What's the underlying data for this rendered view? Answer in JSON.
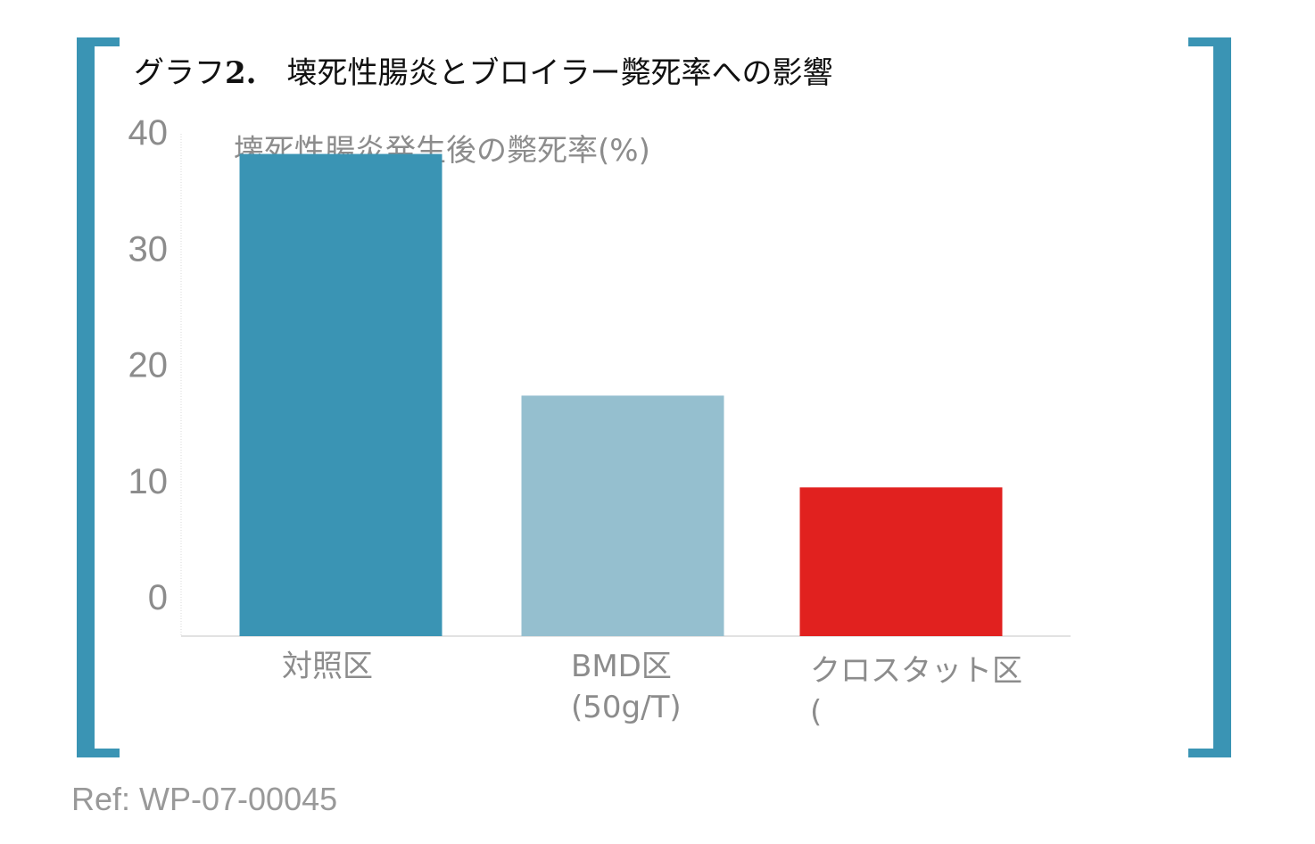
{
  "figure": {
    "title_prefix": "グラフ",
    "title_number": "2.",
    "title_text": "壊死性腸炎とブロイラー斃死率への影響",
    "ref": "Ref: WP-07-00045"
  },
  "colors": {
    "bracket": "#3a94b4"
  },
  "chart_data": {
    "type": "bar",
    "ylabel": "壊死性腸炎発生後の斃死率(%)",
    "ylim": [
      0,
      44
    ],
    "yticks": [
      0,
      10,
      20,
      30,
      40
    ],
    "grid": false,
    "categories": [
      {
        "line1": "対照区",
        "line2": ""
      },
      {
        "line1": "BMD区",
        "line2": "(50g/T)"
      },
      {
        "line1": "クロスタット区",
        "line2": "("
      }
    ],
    "values": [
      41.5,
      20.7,
      12.8
    ],
    "colors": [
      "#3a94b4",
      "#95bfcf",
      "#e1211f"
    ]
  }
}
